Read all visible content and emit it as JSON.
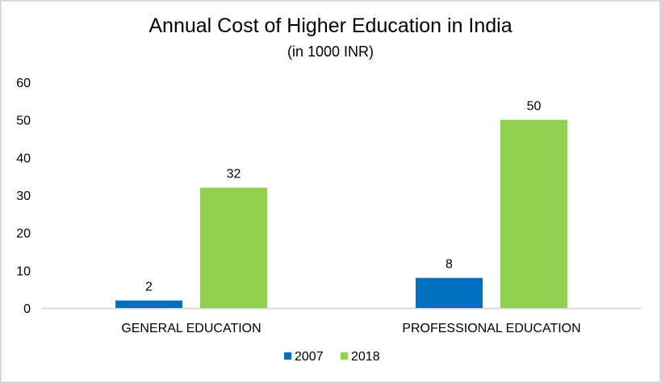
{
  "chart_data": {
    "type": "bar",
    "title": "Annual Cost of Higher Education in India",
    "subtitle": "(in 1000 INR)",
    "xlabel": "",
    "ylabel": "",
    "categories": [
      "GENERAL EDUCATION",
      "PROFESSIONAL EDUCATION"
    ],
    "series": [
      {
        "name": "2007",
        "values": [
          2,
          8
        ],
        "color": "#0070C0"
      },
      {
        "name": "2018",
        "values": [
          32,
          50
        ],
        "color": "#92D050"
      }
    ],
    "ylim": [
      0,
      60
    ],
    "yticks": [
      0,
      10,
      20,
      30,
      40,
      50,
      60
    ],
    "grid": false,
    "data_labels": true,
    "legend": "bottom"
  }
}
